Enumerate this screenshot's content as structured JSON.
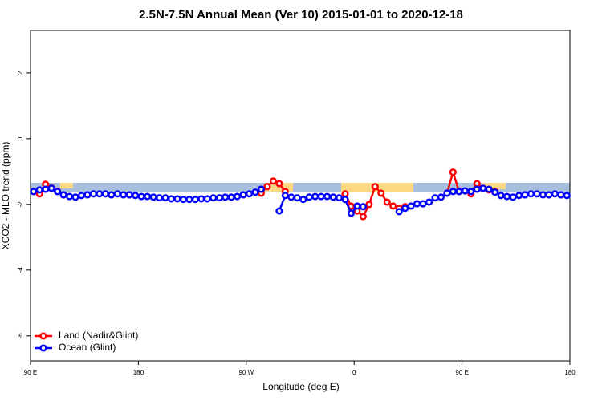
{
  "chart_data": {
    "type": "line",
    "title": "2.5N-7.5N Annual Mean (Ver 10)   2015-01-01 to 2020-12-18",
    "xlabel": "Longitude (deg E)",
    "ylabel": "XCO2 - MLO trend (ppm)",
    "xlim": [
      90,
      540
    ],
    "ylim": [
      -6.76,
      3.29
    ],
    "xticks": [
      {
        "value": 90,
        "label": "90 E"
      },
      180,
      {
        "value": 270,
        "label": "90 W"
      },
      {
        "value": 360,
        "label": "0"
      },
      {
        "value": 450,
        "label": "90 E"
      },
      {
        "value": 540,
        "label": "180"
      }
    ],
    "yticks": [
      -6,
      -4,
      -2,
      0,
      2
    ],
    "legend": "bottom-left",
    "x": [
      92.5,
      97.5,
      102.5,
      107.5,
      112.5,
      117.5,
      122.5,
      127.5,
      132.5,
      137.5,
      142.5,
      147.5,
      152.5,
      157.5,
      162.5,
      167.5,
      172.5,
      177.5,
      182.5,
      187.5,
      192.5,
      197.5,
      202.5,
      207.5,
      212.5,
      217.5,
      222.5,
      227.5,
      232.5,
      237.5,
      242.5,
      247.5,
      252.5,
      257.5,
      262.5,
      267.5,
      272.5,
      277.5,
      282.5,
      287.5,
      292.5,
      297.5,
      302.5,
      307.5,
      312.5,
      317.5,
      322.5,
      327.5,
      332.5,
      337.5,
      342.5,
      347.5,
      352.5,
      357.5,
      362.5,
      367.5,
      372.5,
      377.5,
      382.5,
      387.5,
      392.5,
      397.5,
      402.5,
      407.5,
      412.5,
      417.5,
      422.5,
      427.5,
      432.5,
      437.5,
      442.5,
      447.5,
      452.5,
      457.5,
      462.5,
      467.5,
      472.5,
      477.5,
      482.5,
      487.5,
      492.5,
      497.5,
      502.5,
      507.5,
      512.5,
      517.5,
      522.5,
      527.5,
      532.5,
      537.5
    ],
    "series": [
      {
        "name": "Land (Nadir&Glint)",
        "color": "#ff0000",
        "values": [
          null,
          -1.68,
          -1.39,
          -1.5,
          -1.6,
          -1.71,
          null,
          null,
          null,
          null,
          null,
          null,
          null,
          null,
          null,
          null,
          null,
          null,
          null,
          null,
          null,
          null,
          null,
          null,
          null,
          null,
          null,
          null,
          null,
          null,
          null,
          null,
          null,
          null,
          null,
          null,
          null,
          null,
          -1.66,
          -1.46,
          -1.29,
          -1.37,
          -1.61,
          null,
          null,
          null,
          null,
          null,
          null,
          null,
          null,
          null,
          -1.68,
          -2.05,
          -2.2,
          -2.37,
          -2.0,
          -1.46,
          -1.66,
          -1.93,
          -2.05,
          -2.12,
          -2.07,
          null,
          null,
          null,
          null,
          null,
          null,
          -1.66,
          -1.02,
          -1.61,
          null,
          -1.68,
          -1.37,
          -1.51,
          -1.56,
          -1.61,
          null,
          null,
          null,
          null,
          null,
          null,
          null,
          null,
          null,
          null,
          null,
          null
        ]
      },
      {
        "name": "Ocean (Glint)",
        "color": "#0000ff",
        "values": [
          -1.61,
          -1.56,
          -1.54,
          -1.51,
          -1.61,
          -1.71,
          -1.76,
          -1.78,
          -1.73,
          -1.71,
          -1.68,
          -1.68,
          -1.68,
          -1.71,
          -1.68,
          -1.71,
          -1.71,
          -1.73,
          -1.76,
          -1.76,
          -1.78,
          -1.8,
          -1.8,
          -1.83,
          -1.83,
          -1.85,
          -1.85,
          -1.85,
          -1.83,
          -1.83,
          -1.8,
          -1.8,
          -1.78,
          -1.78,
          -1.76,
          -1.71,
          -1.68,
          -1.63,
          -1.54,
          null,
          null,
          -2.2,
          -1.73,
          -1.78,
          -1.8,
          -1.85,
          -1.78,
          -1.76,
          -1.76,
          -1.76,
          -1.78,
          -1.8,
          -1.85,
          -2.27,
          -2.05,
          -2.07,
          null,
          null,
          null,
          null,
          null,
          -2.22,
          -2.12,
          -2.05,
          -1.98,
          -1.98,
          -1.93,
          -1.8,
          -1.78,
          -1.66,
          -1.61,
          -1.61,
          -1.59,
          -1.61,
          -1.54,
          -1.51,
          -1.54,
          -1.63,
          -1.73,
          -1.76,
          -1.78,
          -1.73,
          -1.71,
          -1.68,
          -1.68,
          -1.71,
          -1.71,
          -1.68,
          -1.71,
          -1.73
        ]
      }
    ]
  }
}
